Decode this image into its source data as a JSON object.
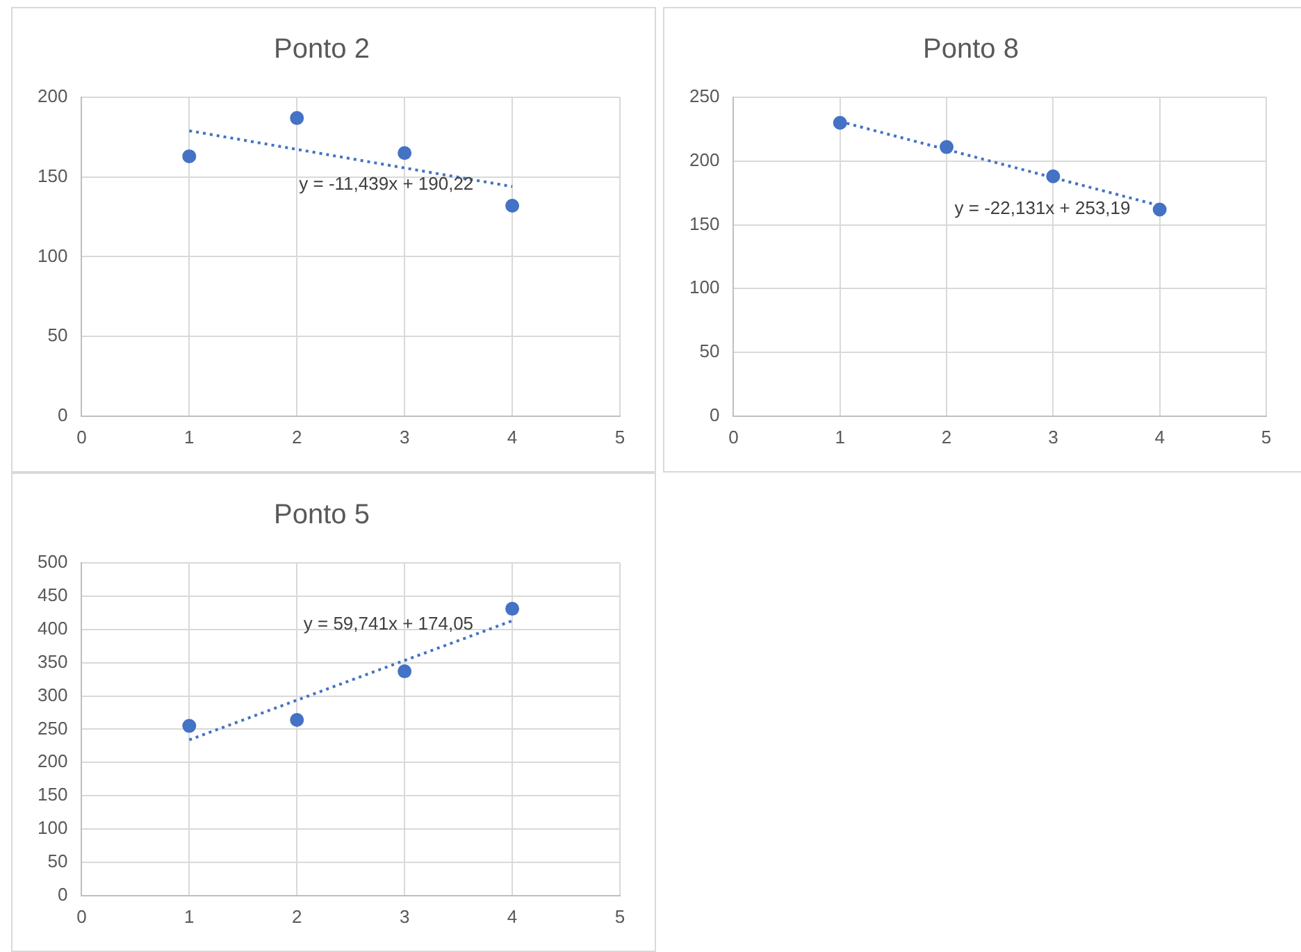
{
  "chart_data": [
    {
      "type": "scatter",
      "title": "Ponto 2",
      "xlim": [
        0,
        5
      ],
      "xticks": [
        0,
        1,
        2,
        3,
        4,
        5
      ],
      "ylim": [
        0,
        200
      ],
      "yticks": [
        0,
        50,
        100,
        150,
        200
      ],
      "grid": true,
      "legend": false,
      "series": [
        {
          "color": "#4472c4",
          "marker": "circle",
          "x": [
            1,
            2,
            3,
            4
          ],
          "values": [
            163,
            187,
            165,
            132
          ]
        },
        {
          "type": "line",
          "color": "#4472c4",
          "line_style": "dotted",
          "marker": "none",
          "x": [
            1,
            4
          ],
          "values": [
            179,
            144
          ]
        }
      ],
      "annotations": [
        "y = -11,439x + 190,22"
      ]
    },
    {
      "type": "scatter",
      "title": "Ponto 8",
      "xlim": [
        0,
        5
      ],
      "xticks": [
        0,
        1,
        2,
        3,
        4,
        5
      ],
      "ylim": [
        0,
        250
      ],
      "yticks": [
        0,
        50,
        100,
        150,
        200,
        250
      ],
      "grid": true,
      "legend": false,
      "series": [
        {
          "color": "#4472c4",
          "marker": "circle",
          "x": [
            1,
            2,
            3,
            4
          ],
          "values": [
            230,
            211,
            188,
            162
          ]
        },
        {
          "type": "line",
          "color": "#4472c4",
          "line_style": "dotted",
          "marker": "none",
          "x": [
            1,
            4
          ],
          "values": [
            231,
            165
          ]
        }
      ],
      "annotations": [
        "y = -22,131x + 253,19"
      ]
    },
    {
      "type": "scatter",
      "title": "Ponto 5",
      "xlim": [
        0,
        5
      ],
      "xticks": [
        0,
        1,
        2,
        3,
        4,
        5
      ],
      "ylim": [
        0,
        500
      ],
      "yticks": [
        0,
        50,
        100,
        150,
        200,
        250,
        300,
        350,
        400,
        450,
        500
      ],
      "grid": true,
      "legend": false,
      "series": [
        {
          "color": "#4472c4",
          "marker": "circle",
          "x": [
            1,
            2,
            3,
            4
          ],
          "values": [
            255,
            264,
            337,
            431
          ]
        },
        {
          "type": "line",
          "color": "#4472c4",
          "line_style": "dotted",
          "marker": "none",
          "x": [
            1,
            4
          ],
          "values": [
            234,
            413
          ]
        }
      ],
      "annotations": [
        "y = 59,741x + 174,05"
      ]
    }
  ]
}
